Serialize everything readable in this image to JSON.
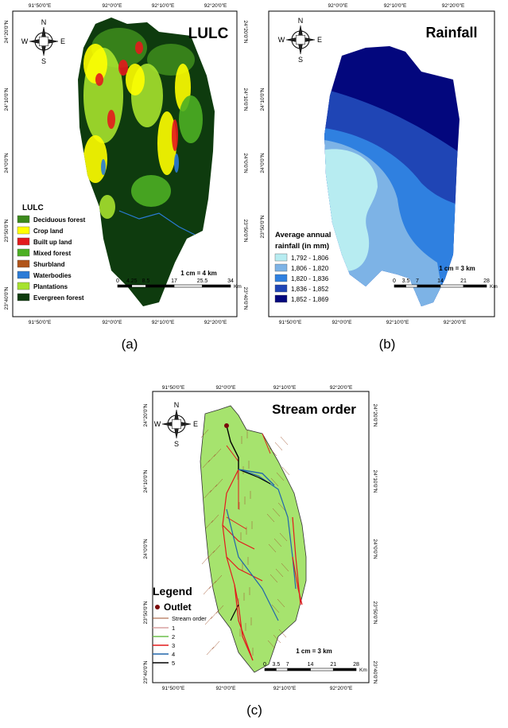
{
  "compass": [
    "N",
    "E",
    "S",
    "W"
  ],
  "panels": [
    {
      "caption": "(a)",
      "title": "LULC",
      "top_labels": [
        "91°50'0\"E",
        "92°0'0\"E",
        "92°10'0\"E",
        "92°20'0\"E"
      ],
      "bottom_labels": [
        "91°50'0\"E",
        "92°0'0\"E",
        "92°10'0\"E",
        "92°20'0\"E"
      ],
      "left_labels": [
        "24°20'0\"N",
        "24°10'0\"N",
        "24°0'0\"N",
        "23°50'0\"N",
        "23°40'0\"N"
      ],
      "right_labels": [
        "24°20'0\"N",
        "24°10'0\"N",
        "24°0'0\"N",
        "23°50'0\"N",
        "23°40'0\"N"
      ],
      "legend": {
        "title_lines": [
          "LULC"
        ],
        "items": [
          {
            "label": "Deciduous forest",
            "color": "#3c8a1c"
          },
          {
            "label": "Crop land",
            "color": "#ffff00"
          },
          {
            "label": "Built up land",
            "color": "#e31a1c"
          },
          {
            "label": "Mixed forest",
            "color": "#4caf24"
          },
          {
            "label": "Shurbland",
            "color": "#b0541a"
          },
          {
            "label": "Waterbodies",
            "color": "#2b7bd6"
          },
          {
            "label": "Plantations",
            "color": "#a6e22e"
          },
          {
            "label": "Evergreen forest",
            "color": "#0e3b0e"
          }
        ]
      },
      "scale_text": "1 cm = 4 km",
      "scale_bar": {
        "labels": [
          "0",
          "4.25",
          "8.5",
          "17",
          "25.5",
          "34"
        ],
        "unit": "Km"
      }
    },
    {
      "caption": "(b)",
      "title": "Rainfall",
      "top_labels": [
        "92°0'0\"E",
        "92°10'0\"E",
        "92°20'0\"E"
      ],
      "bottom_labels": [
        "91°50'0\"E",
        "92°0'0\"E",
        "92°10'0\"E",
        "92°20'0\"E"
      ],
      "left_labels": [
        "24°10'0\"N",
        "24°0'0\"N",
        "23°50'0\"N"
      ],
      "right_labels": [],
      "legend": {
        "title_lines": [
          "Average annual",
          "rainfall (in mm)"
        ],
        "items": [
          {
            "label": "1,792 - 1,806",
            "color": "#b7ecf1"
          },
          {
            "label": "1,806 - 1,820",
            "color": "#7db3e6"
          },
          {
            "label": "1,820 - 1,836",
            "color": "#2f80e0"
          },
          {
            "label": "1,836 - 1,852",
            "color": "#1f45b5"
          },
          {
            "label": "1,852 - 1,869",
            "color": "#03077d"
          }
        ]
      },
      "scale_text": "1 cm = 3 km",
      "scale_bar": {
        "labels": [
          "0",
          "3.5",
          "7",
          "14",
          "21",
          "28"
        ],
        "unit": "Km"
      }
    },
    {
      "caption": "(c)",
      "title": "Stream order",
      "top_labels": [
        "91°50'0\"E",
        "92°0'0\"E",
        "92°10'0\"E",
        "92°20'0\"E"
      ],
      "bottom_labels": [
        "91°50'0\"E",
        "92°0'0\"E",
        "92°10'0\"E",
        "92°20'0\"E"
      ],
      "left_labels": [
        "24°20'0\"N",
        "24°10'0\"N",
        "24°0'0\"N",
        "23°50'0\"N",
        "23°40'0\"N"
      ],
      "right_labels": [
        "24°20'0\"N",
        "24°10'0\"N",
        "24°0'0\"N",
        "23°50'0\"N",
        "23°40'0\"N"
      ],
      "legend": {
        "title_lines": [
          "Legend"
        ],
        "outlet": "Outlet",
        "subtitle": "Stream order",
        "items": [
          {
            "label": "1",
            "color": "#d9a0a0"
          },
          {
            "label": "2",
            "color": "#6dbf4b"
          },
          {
            "label": "3",
            "color": "#e31a1c"
          },
          {
            "label": "4",
            "color": "#2166ac"
          },
          {
            "label": "5",
            "color": "#000000"
          }
        ]
      },
      "scale_text": "1 cm = 3 km",
      "scale_bar": {
        "labels": [
          "0",
          "3.5",
          "7",
          "14",
          "21",
          "28"
        ],
        "unit": "Km"
      }
    }
  ]
}
